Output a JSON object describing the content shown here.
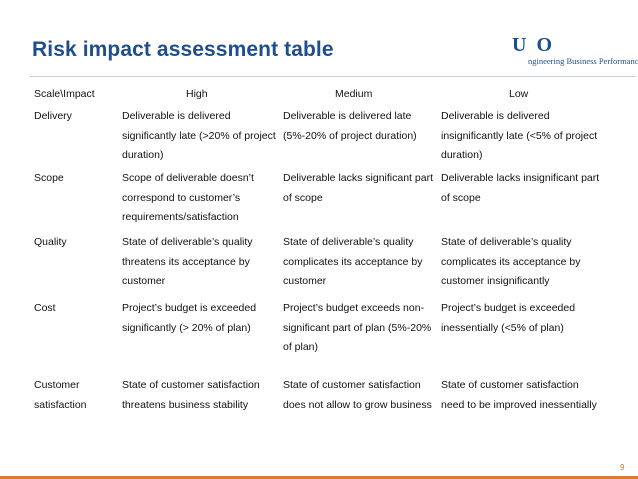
{
  "title": "Risk impact assessment table",
  "logo": {
    "mark": "U  O",
    "tagline": "ngineering Business Performance"
  },
  "header": {
    "scale": "Scale\\Impact",
    "high": "High",
    "medium": "Medium",
    "low": "Low"
  },
  "rows": [
    {
      "label": "Delivery",
      "high": "Deliverable is delivered significantly late (>20% of project duration)",
      "medium": "Deliverable is delivered late (5%-20% of project duration)",
      "low": "Deliverable is delivered insignificantly late (<5% of project duration)"
    },
    {
      "label": "Scope",
      "high": "Scope of deliverable doesn’t correspond to customer’s requirements/satisfaction",
      "medium": "Deliverable lacks significant part of scope",
      "low": "Deliverable lacks insignificant part of scope"
    },
    {
      "label": "Quality",
      "high": "State of deliverable’s quality threatens its acceptance by customer",
      "medium": "State of deliverable’s quality complicates its acceptance by customer",
      "low": "State of deliverable’s quality complicates its acceptance by customer insignificantly"
    },
    {
      "label": "Cost",
      "high": "Project’s budget  is exceeded significantly (> 20% of plan)",
      "medium": "Project’s budget  exceeds non-significant part of plan (5%-20% of plan)",
      "low": "Project’s budget is exceeded inessentially (<5% of plan)"
    },
    {
      "label": "Customer satisfaction",
      "high": "State of customer satisfaction threatens business stability",
      "medium": "State of customer satisfaction does not allow to grow business",
      "low": "State of customer satisfaction need to be improved inessentially"
    }
  ],
  "page_number": "9",
  "colors": {
    "title": "#1f4e8c",
    "accent": "#e07a2e"
  }
}
